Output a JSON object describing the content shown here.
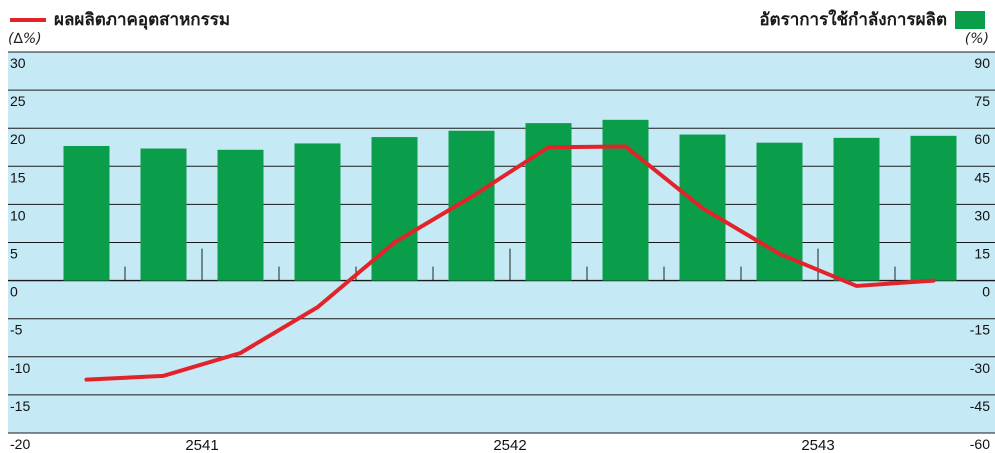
{
  "chart_data": {
    "type": "bar+line",
    "legend": {
      "line_label": "ผลผลิตภาคอุตสาหกรรม",
      "bar_label": "อัตราการใช้กำลังการผลิต"
    },
    "left_unit": "(∆%)",
    "right_unit": "(%)",
    "left_axis": {
      "ylim": [
        -20,
        30
      ],
      "ticks": [
        "30",
        "25",
        "20",
        "15",
        "10",
        "5",
        "0",
        "-5",
        "-10",
        "-15",
        "-20"
      ]
    },
    "right_axis": {
      "ylim": [
        -60,
        90
      ],
      "ticks": [
        "90",
        "75",
        "60",
        "45",
        "30",
        "15",
        "0",
        "-15",
        "-30",
        "-45",
        "-60"
      ]
    },
    "x_labels": [
      "2541",
      "2542",
      "2543"
    ],
    "periods_per_year": 4,
    "capacity_utilization": [
      53,
      52,
      51.5,
      54,
      56.5,
      59,
      62,
      63.3,
      57.5,
      54.3,
      56.2,
      57
    ],
    "industrial_output": [
      -13,
      -12.5,
      -9.5,
      -3.5,
      5,
      11,
      17.5,
      17.6,
      9.5,
      3.5,
      -0.7,
      0
    ],
    "colors": {
      "plot_bg": "#c6e9f6",
      "bar": "#0a9e4b",
      "line": "#e3232a",
      "grid": "#1a1a1a"
    },
    "grid": true
  }
}
